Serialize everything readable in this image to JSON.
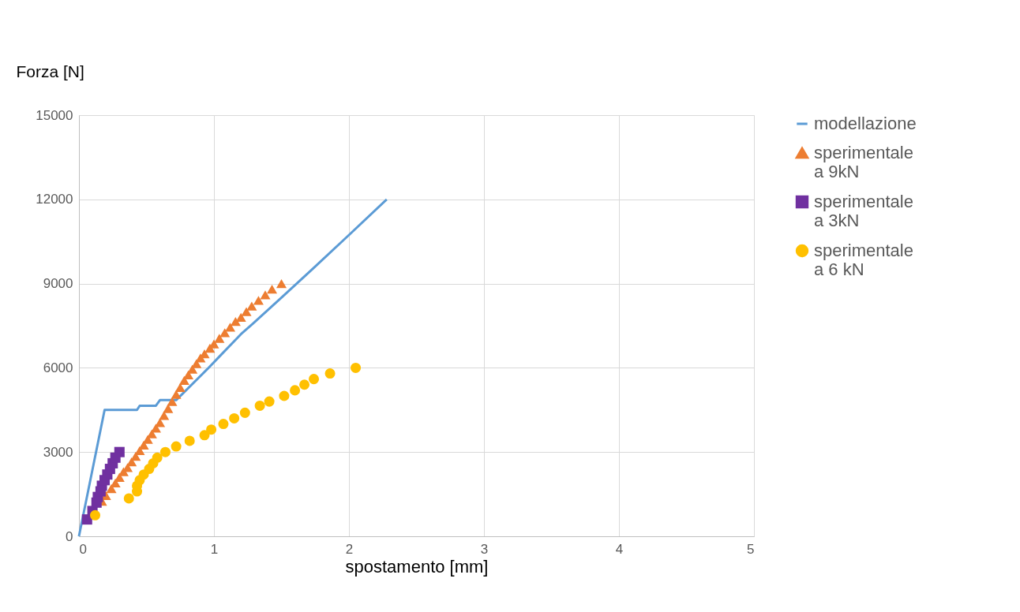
{
  "chart_data": {
    "type": "line",
    "xlabel": "spostamento [mm]",
    "ylabel": "Forza  [N]",
    "xlim": [
      0,
      5
    ],
    "xticks": [
      0,
      1,
      2,
      3,
      4,
      5
    ],
    "ylim": [
      0,
      15000
    ],
    "yticks": [
      0,
      3000,
      6000,
      9000,
      12000,
      15000
    ],
    "grid": true,
    "legend": "right",
    "series": [
      {
        "name": "modellazione",
        "color": "#5b9bd5",
        "marker": "none",
        "x": [
          0,
          0.19,
          0.43,
          0.45,
          0.57,
          0.6,
          0.72,
          0.95,
          1.05,
          1.2,
          1.29,
          1.5,
          1.73,
          2.0,
          2.28
        ],
        "values": [
          0,
          4500,
          4500,
          4650,
          4650,
          4850,
          4850,
          5950,
          6450,
          7200,
          7580,
          8500,
          9520,
          10730,
          12000
        ]
      },
      {
        "name": "sperimentale a 9kN",
        "type": "scatter",
        "color": "#ed7d31",
        "marker": "triangle",
        "x": [
          0.17,
          0.2,
          0.24,
          0.27,
          0.3,
          0.33,
          0.36,
          0.39,
          0.42,
          0.45,
          0.48,
          0.51,
          0.54,
          0.57,
          0.6,
          0.63,
          0.66,
          0.69,
          0.72,
          0.75,
          0.78,
          0.81,
          0.84,
          0.87,
          0.9,
          0.93,
          0.97,
          1.0,
          1.04,
          1.08,
          1.12,
          1.16,
          1.2,
          1.24,
          1.28,
          1.33,
          1.38,
          1.43,
          1.5
        ],
        "values": [
          1250,
          1450,
          1700,
          1900,
          2100,
          2300,
          2450,
          2650,
          2850,
          3050,
          3250,
          3450,
          3650,
          3850,
          4050,
          4300,
          4550,
          4800,
          5050,
          5300,
          5550,
          5750,
          5950,
          6150,
          6350,
          6500,
          6700,
          6850,
          7050,
          7250,
          7450,
          7650,
          7800,
          8000,
          8200,
          8400,
          8600,
          8800,
          9000
        ]
      },
      {
        "name": "sperimentale a 3kN",
        "type": "scatter",
        "color": "#7030a0",
        "marker": "square",
        "x": [
          0.06,
          0.1,
          0.13,
          0.14,
          0.16,
          0.17,
          0.19,
          0.21,
          0.23,
          0.25,
          0.27,
          0.3
        ],
        "values": [
          600,
          900,
          1200,
          1400,
          1600,
          1800,
          2000,
          2200,
          2400,
          2600,
          2800,
          3000
        ]
      },
      {
        "name": "sperimentale a 6 kN",
        "type": "scatter",
        "color": "#ffc000",
        "marker": "circle",
        "x": [
          0.12,
          0.37,
          0.43,
          0.43,
          0.45,
          0.48,
          0.52,
          0.55,
          0.58,
          0.64,
          0.72,
          0.82,
          0.93,
          0.98,
          1.07,
          1.15,
          1.23,
          1.34,
          1.41,
          1.52,
          1.6,
          1.67,
          1.74,
          1.86,
          2.05
        ],
        "values": [
          750,
          1350,
          1600,
          1800,
          2000,
          2200,
          2400,
          2600,
          2800,
          3000,
          3200,
          3400,
          3600,
          3800,
          4000,
          4200,
          4400,
          4650,
          4800,
          5000,
          5200,
          5400,
          5600,
          5800,
          6000
        ]
      }
    ]
  }
}
